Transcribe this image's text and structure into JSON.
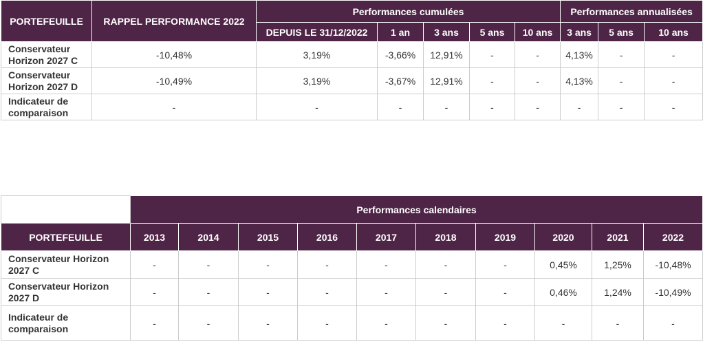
{
  "colors": {
    "header_bg": "#4f2547",
    "header_text": "#ffffff",
    "border": "#cccccc",
    "text": "#333333"
  },
  "top_table": {
    "col_portefeuille": "PORTEFEUILLE",
    "col_rappel": "RAPPEL PERFORMANCE 2022",
    "group_cumulees": "Performances cumulées",
    "group_annualisees": "Performances annualisées",
    "sub_cumulees": [
      "DEPUIS LE 31/12/2022",
      "1 an",
      "3 ans",
      "5 ans",
      "10 ans"
    ],
    "sub_annualisees": [
      "3 ans",
      "5 ans",
      "10 ans"
    ],
    "rows": [
      {
        "name_line1": "Conservateur",
        "name_line2": "Horizon 2027 C",
        "rappel": "-10,48%",
        "cumulees": [
          "3,19%",
          "-3,66%",
          "12,91%",
          "-",
          "-"
        ],
        "annualisees": [
          "4,13%",
          "-",
          "-"
        ]
      },
      {
        "name_line1": "Conservateur",
        "name_line2": "Horizon 2027 D",
        "rappel": "-10,49%",
        "cumulees": [
          "3,19%",
          "-3,67%",
          "12,91%",
          "-",
          "-"
        ],
        "annualisees": [
          "4,13%",
          "-",
          "-"
        ]
      },
      {
        "name_line1": "Indicateur de",
        "name_line2": "comparaison",
        "rappel": "-",
        "cumulees": [
          "-",
          "-",
          "-",
          "-",
          "-"
        ],
        "annualisees": [
          "-",
          "-",
          "-"
        ]
      }
    ]
  },
  "bottom_table": {
    "group_calendaires": "Performances calendaires",
    "col_portefeuille": "PORTEFEUILLE",
    "years": [
      "2013",
      "2014",
      "2015",
      "2016",
      "2017",
      "2018",
      "2019",
      "2020",
      "2021",
      "2022"
    ],
    "rows": [
      {
        "name_line1": "Conservateur Horizon",
        "name_line2": "2027 C",
        "values": [
          "-",
          "-",
          "-",
          "-",
          "-",
          "-",
          "-",
          "0,45%",
          "1,25%",
          "-10,48%"
        ]
      },
      {
        "name_line1": "Conservateur Horizon",
        "name_line2": "2027 D",
        "values": [
          "-",
          "-",
          "-",
          "-",
          "-",
          "-",
          "-",
          "0,46%",
          "1,24%",
          "-10,49%"
        ]
      },
      {
        "name_line1": "Indicateur de",
        "name_line2": "comparaison",
        "values": [
          "-",
          "-",
          "-",
          "-",
          "-",
          "-",
          "-",
          "-",
          "-",
          "-"
        ]
      }
    ]
  }
}
